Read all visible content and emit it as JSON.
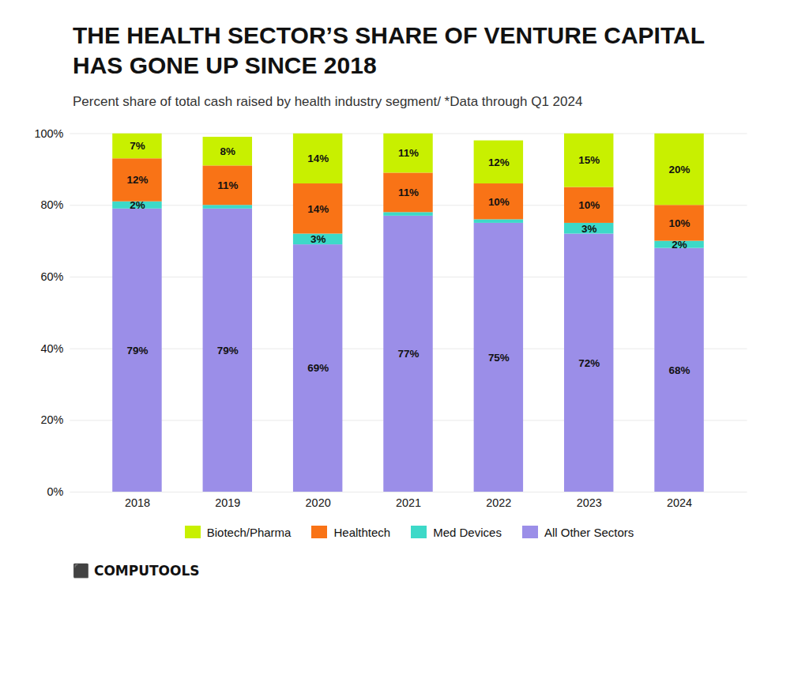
{
  "chart_data": {
    "type": "bar",
    "stacked": true,
    "title": "THE HEALTH SECTOR’S SHARE OF VENTURE CAPITAL\nHAS GONE UP SINCE 2018",
    "subtitle": "Percent share of total cash raised by health industry segment/ *Data through Q1 2024",
    "categories": [
      "2018",
      "2019",
      "2020",
      "2021",
      "2022",
      "2023",
      "2024"
    ],
    "series": [
      {
        "name": "All Other Sectors",
        "color": "#9b8ee8",
        "values": [
          79,
          79,
          69,
          77,
          75,
          72,
          68
        ],
        "value_labels": [
          "79%",
          "79%",
          "69%",
          "77%",
          "75%",
          "72%",
          "68%"
        ]
      },
      {
        "name": "Med Devices",
        "color": "#3dd9c8",
        "values": [
          2,
          1,
          3,
          1,
          1,
          3,
          2
        ],
        "value_labels": [
          "2%",
          null,
          "3%",
          null,
          null,
          "3%",
          "2%"
        ]
      },
      {
        "name": "Healthtech",
        "color": "#f97316",
        "values": [
          12,
          11,
          14,
          11,
          10,
          10,
          10
        ],
        "value_labels": [
          "12%",
          "11%",
          "14%",
          "11%",
          "10%",
          "10%",
          "10%"
        ]
      },
      {
        "name": "Biotech/Pharma",
        "color": "#c8f000",
        "values": [
          7,
          8,
          14,
          11,
          12,
          15,
          20
        ],
        "value_labels": [
          "7%",
          "8%",
          "14%",
          "11%",
          "12%",
          "15%",
          "20%"
        ]
      }
    ],
    "ylim": [
      0,
      100
    ],
    "yticks": [
      {
        "value": 0,
        "label": "0%"
      },
      {
        "value": 20,
        "label": "20%"
      },
      {
        "value": 40,
        "label": "40%"
      },
      {
        "value": 60,
        "label": "60%"
      },
      {
        "value": 80,
        "label": "80%"
      },
      {
        "value": 100,
        "label": "100%"
      }
    ],
    "grid": true,
    "legend": "bottom",
    "data_labels": true,
    "annotations": [
      "⬛ COMPUTOOLS"
    ]
  }
}
